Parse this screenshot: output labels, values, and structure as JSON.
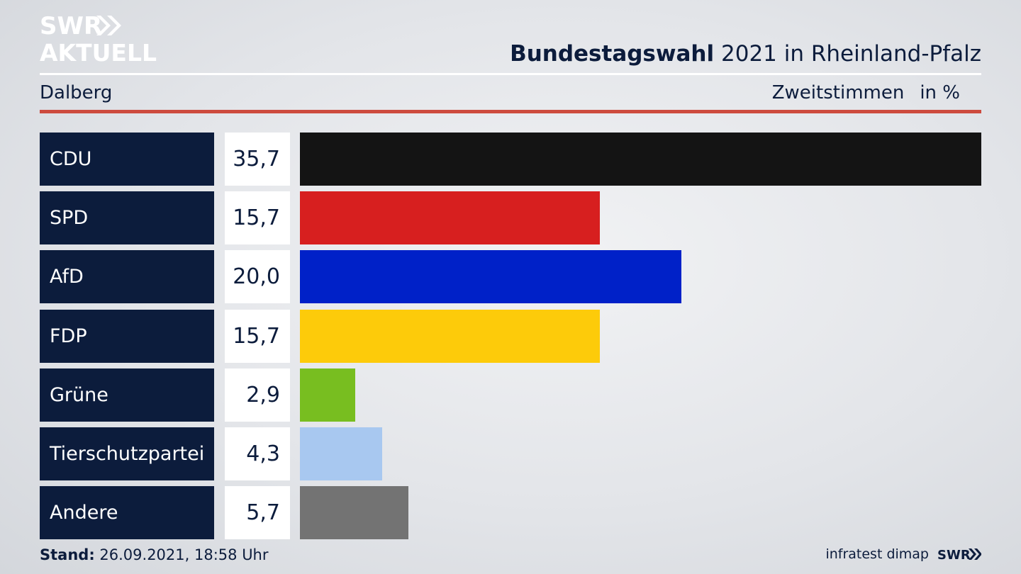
{
  "logo": {
    "line1": "SWR",
    "line2": "AKTUELL"
  },
  "title": {
    "bold": "Bundestagswahl",
    "rest": "2021 in Rheinland-Pfalz"
  },
  "subtitle": {
    "left": "Dalberg",
    "measure": "Zweitstimmen",
    "unit": "in %"
  },
  "colors": {
    "navy": "#0c1c3c",
    "accent_rule": "#cd4b3e",
    "background": "#e3e5e9"
  },
  "chart_data": {
    "type": "bar",
    "orientation": "horizontal",
    "categories": [
      "CDU",
      "SPD",
      "AfD",
      "FDP",
      "Grüne",
      "Tierschutzpartei",
      "Andere"
    ],
    "values": [
      35.7,
      15.7,
      20.0,
      15.7,
      2.9,
      4.3,
      5.7
    ],
    "value_labels": [
      "35,7",
      "15,7",
      "20,0",
      "15,7",
      "2,9",
      "4,3",
      "5,7"
    ],
    "colors": [
      "#141414",
      "#d71f1f",
      "#0021c8",
      "#fdcb0a",
      "#78be20",
      "#a8c8f0",
      "#737373"
    ],
    "xlim": [
      0,
      35.7
    ],
    "grid": false,
    "legend": "none"
  },
  "footer": {
    "stand_label": "Stand:",
    "stand_value": "26.09.2021, 18:58 Uhr",
    "source": "infratest dimap",
    "brand": "SWR"
  }
}
